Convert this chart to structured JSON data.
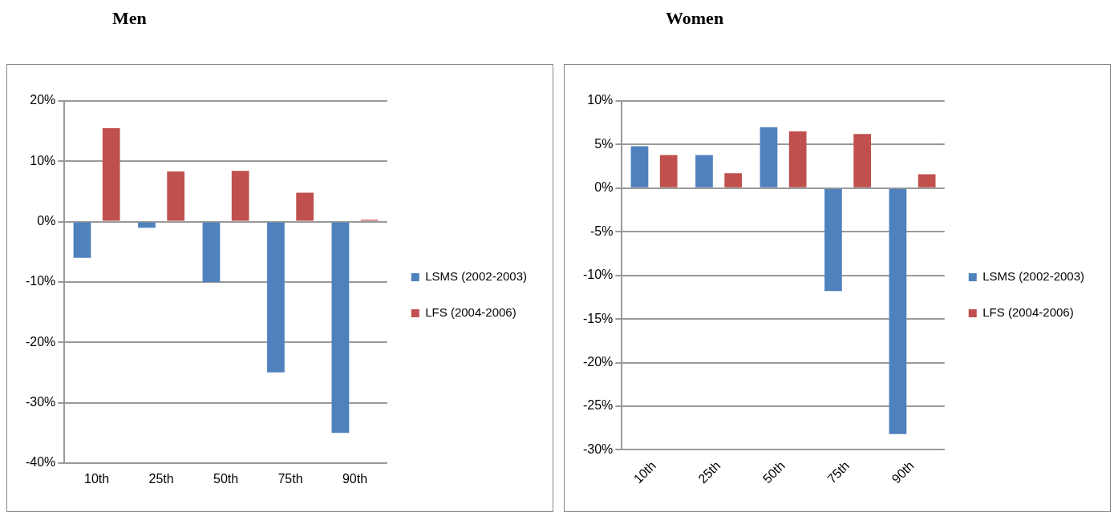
{
  "chart_data": [
    {
      "type": "bar",
      "title": "Men",
      "categories": [
        "10th",
        "25th",
        "50th",
        "75th",
        "90th"
      ],
      "series": [
        {
          "name": "LSMS (2002-2003)",
          "color": "#4f81bd",
          "values": [
            -6,
            -1,
            -10,
            -25,
            -35
          ]
        },
        {
          "name": "LFS (2004-2006)",
          "color": "#c0504d",
          "values": [
            15.5,
            8.3,
            8.4,
            4.8,
            0.3
          ]
        }
      ],
      "ylim": [
        -40,
        20
      ],
      "yticks": [
        {
          "value": -40,
          "label": "-40%"
        },
        {
          "value": -30,
          "label": "-30%"
        },
        {
          "value": -20,
          "label": "-20%"
        },
        {
          "value": -10,
          "label": "-10%"
        },
        {
          "value": 0,
          "label": "0%"
        },
        {
          "value": 10,
          "label": "10%"
        },
        {
          "value": 20,
          "label": "20%"
        }
      ],
      "grid": "y",
      "legend": "right"
    },
    {
      "type": "bar",
      "title": "Women",
      "categories": [
        "10th",
        "25th",
        "50th",
        "75th",
        "90th"
      ],
      "series": [
        {
          "name": "LSMS (2002-2003)",
          "color": "#4f81bd",
          "values": [
            4.8,
            3.8,
            7,
            -11.8,
            -28.2
          ]
        },
        {
          "name": "LFS (2004-2006)",
          "color": "#c0504d",
          "values": [
            3.8,
            1.7,
            6.5,
            6.2,
            1.6
          ]
        }
      ],
      "ylim": [
        -30,
        10
      ],
      "yticks": [
        {
          "value": -30,
          "label": "-30%"
        },
        {
          "value": -25,
          "label": "-25%"
        },
        {
          "value": -20,
          "label": "-20%"
        },
        {
          "value": -15,
          "label": "-15%"
        },
        {
          "value": -10,
          "label": "-10%"
        },
        {
          "value": -5,
          "label": "-5%"
        },
        {
          "value": 0,
          "label": "0%"
        },
        {
          "value": 5,
          "label": "5%"
        },
        {
          "value": 10,
          "label": "10%"
        }
      ],
      "grid": "y",
      "legend": "right"
    }
  ]
}
